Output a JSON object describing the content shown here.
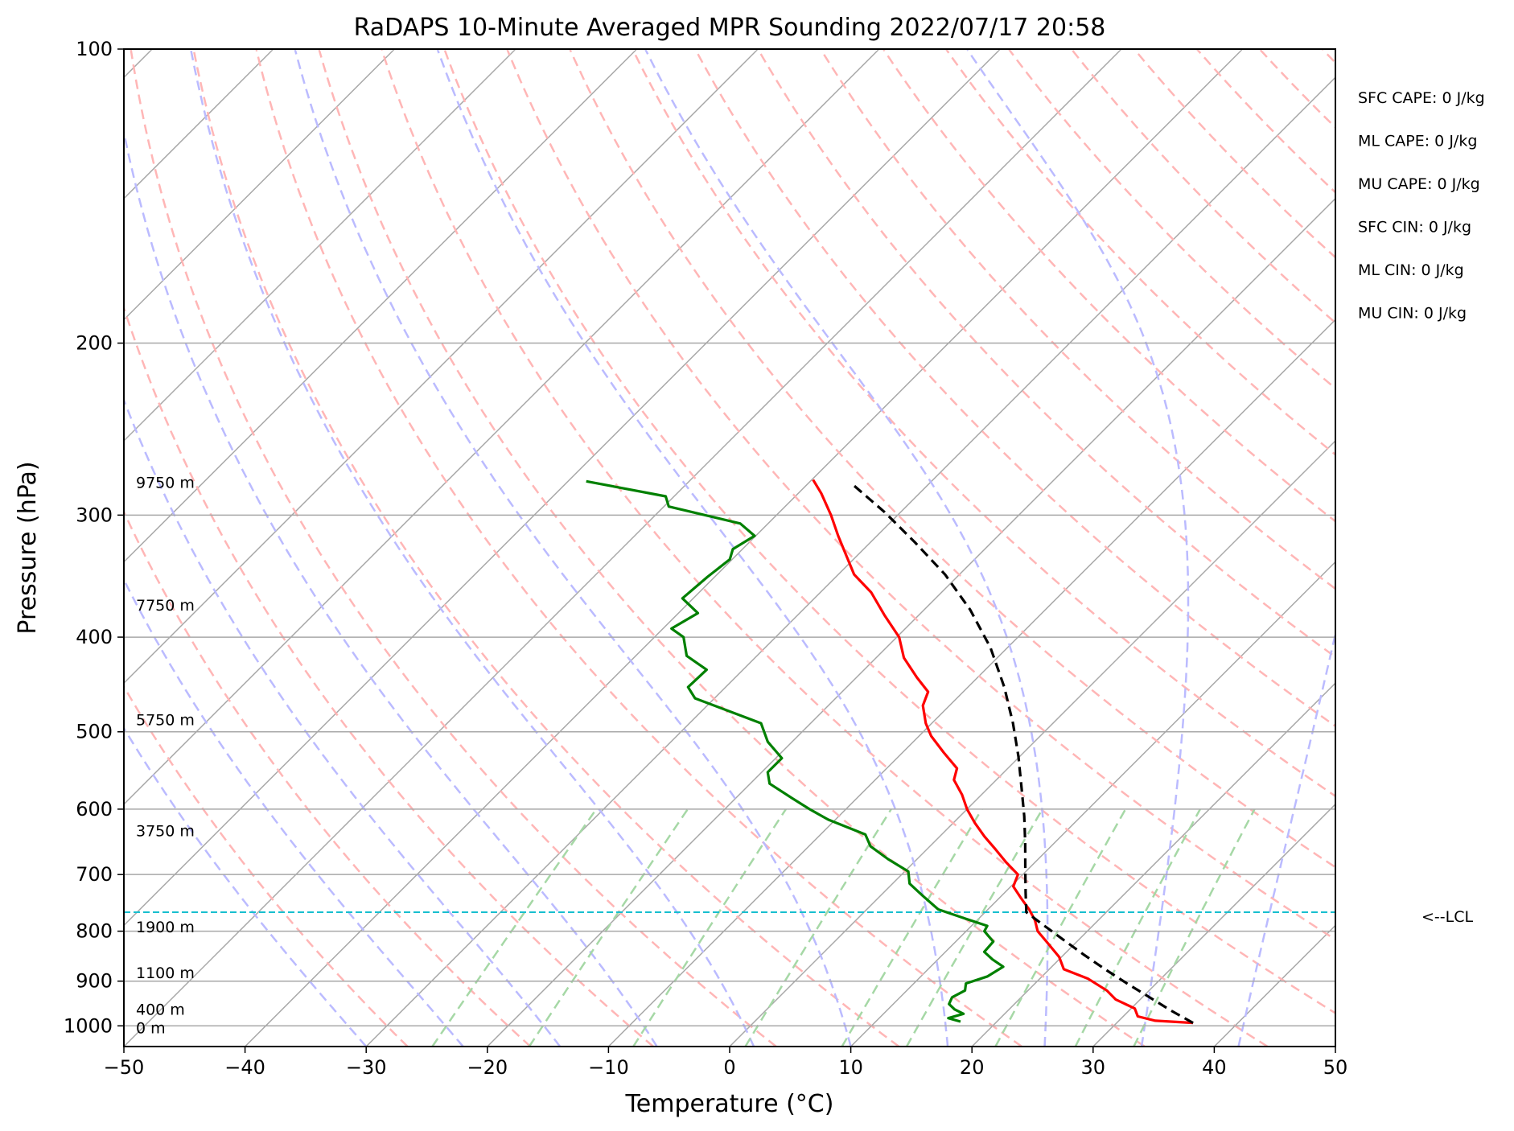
{
  "chart_data": {
    "type": "line",
    "subtype": "skew-T log-P sounding",
    "title": "RaDAPS 10-Minute Averaged MPR Sounding 2022/07/17 20:58",
    "xlabel": "Temperature (°C)",
    "ylabel": "Pressure (hPa)",
    "xlim": [
      -50,
      50
    ],
    "ylim": [
      1050,
      100
    ],
    "y_scale": "log",
    "x_ticks": [
      "−50",
      "−40",
      "−30",
      "−20",
      "−10",
      "0",
      "10",
      "20",
      "30",
      "40",
      "50"
    ],
    "x_tick_values": [
      -50,
      -40,
      -30,
      -20,
      -10,
      0,
      10,
      20,
      30,
      40,
      50
    ],
    "y_ticks": [
      "100",
      "200",
      "300",
      "400",
      "500",
      "600",
      "700",
      "800",
      "900",
      "1000"
    ],
    "y_tick_values": [
      100,
      200,
      300,
      400,
      500,
      600,
      700,
      800,
      900,
      1000
    ],
    "grid": true,
    "series": [
      {
        "color": "#ff0000",
        "points": [
          {
            "p": 993,
            "t": 36.3
          },
          {
            "p": 988,
            "t": 33.0
          },
          {
            "p": 978,
            "t": 31.2
          },
          {
            "p": 960,
            "t": 30.3
          },
          {
            "p": 940,
            "t": 28.0
          },
          {
            "p": 920,
            "t": 26.5
          },
          {
            "p": 895,
            "t": 24.0
          },
          {
            "p": 875,
            "t": 21.2
          },
          {
            "p": 850,
            "t": 19.8
          },
          {
            "p": 820,
            "t": 17.5
          },
          {
            "p": 800,
            "t": 15.9
          },
          {
            "p": 780,
            "t": 14.8
          },
          {
            "p": 760,
            "t": 13.4
          },
          {
            "p": 740,
            "t": 11.8
          },
          {
            "p": 720,
            "t": 10.2
          },
          {
            "p": 700,
            "t": 9.6
          },
          {
            "p": 680,
            "t": 7.6
          },
          {
            "p": 660,
            "t": 5.7
          },
          {
            "p": 640,
            "t": 3.7
          },
          {
            "p": 620,
            "t": 1.8
          },
          {
            "p": 600,
            "t": 0.0
          },
          {
            "p": 580,
            "t": -1.6
          },
          {
            "p": 560,
            "t": -3.5
          },
          {
            "p": 545,
            "t": -4.2
          },
          {
            "p": 525,
            "t": -6.6
          },
          {
            "p": 505,
            "t": -9.0
          },
          {
            "p": 490,
            "t": -10.5
          },
          {
            "p": 470,
            "t": -12.2
          },
          {
            "p": 455,
            "t": -12.9
          },
          {
            "p": 440,
            "t": -15.0
          },
          {
            "p": 420,
            "t": -17.7
          },
          {
            "p": 400,
            "t": -19.8
          },
          {
            "p": 380,
            "t": -22.8
          },
          {
            "p": 360,
            "t": -25.8
          },
          {
            "p": 345,
            "t": -28.7
          },
          {
            "p": 330,
            "t": -30.9
          },
          {
            "p": 315,
            "t": -33.2
          },
          {
            "p": 300,
            "t": -35.5
          },
          {
            "p": 285,
            "t": -38.1
          },
          {
            "p": 276,
            "t": -39.9
          }
        ]
      },
      {
        "color": "#008000",
        "points": [
          {
            "p": 990,
            "t": 17.0
          },
          {
            "p": 982,
            "t": 15.7
          },
          {
            "p": 972,
            "t": 16.6
          },
          {
            "p": 962,
            "t": 15.5
          },
          {
            "p": 950,
            "t": 14.6
          },
          {
            "p": 935,
            "t": 14.3
          },
          {
            "p": 920,
            "t": 14.8
          },
          {
            "p": 905,
            "t": 14.3
          },
          {
            "p": 890,
            "t": 15.5
          },
          {
            "p": 870,
            "t": 16.0
          },
          {
            "p": 855,
            "t": 14.5
          },
          {
            "p": 840,
            "t": 13.2
          },
          {
            "p": 820,
            "t": 13.1
          },
          {
            "p": 800,
            "t": 11.5
          },
          {
            "p": 790,
            "t": 11.3
          },
          {
            "p": 775,
            "t": 8.6
          },
          {
            "p": 760,
            "t": 5.9
          },
          {
            "p": 735,
            "t": 3.4
          },
          {
            "p": 715,
            "t": 1.4
          },
          {
            "p": 695,
            "t": 0.3
          },
          {
            "p": 675,
            "t": -2.4
          },
          {
            "p": 655,
            "t": -4.9
          },
          {
            "p": 637,
            "t": -6.3
          },
          {
            "p": 615,
            "t": -10.6
          },
          {
            "p": 600,
            "t": -13.0
          },
          {
            "p": 585,
            "t": -15.3
          },
          {
            "p": 565,
            "t": -18.4
          },
          {
            "p": 550,
            "t": -19.5
          },
          {
            "p": 532,
            "t": -19.5
          },
          {
            "p": 512,
            "t": -22.0
          },
          {
            "p": 490,
            "t": -24.1
          },
          {
            "p": 462,
            "t": -31.6
          },
          {
            "p": 450,
            "t": -33.1
          },
          {
            "p": 432,
            "t": -33.0
          },
          {
            "p": 418,
            "t": -35.8
          },
          {
            "p": 400,
            "t": -37.6
          },
          {
            "p": 392,
            "t": -39.3
          },
          {
            "p": 378,
            "t": -38.4
          },
          {
            "p": 365,
            "t": -40.9
          },
          {
            "p": 347,
            "t": -40.6
          },
          {
            "p": 333,
            "t": -40.2
          },
          {
            "p": 325,
            "t": -40.8
          },
          {
            "p": 315,
            "t": -40.1
          },
          {
            "p": 306,
            "t": -42.3
          },
          {
            "p": 294,
            "t": -49.6
          },
          {
            "p": 287,
            "t": -50.7
          },
          {
            "p": 277,
            "t": -58.5
          }
        ]
      },
      {
        "color": "#000000",
        "points": [
          {
            "p": 993,
            "t": 36.3
          },
          {
            "p": 965,
            "t": 33.5
          },
          {
            "p": 935,
            "t": 30.6
          },
          {
            "p": 905,
            "t": 27.6
          },
          {
            "p": 875,
            "t": 24.6
          },
          {
            "p": 845,
            "t": 21.6
          },
          {
            "p": 815,
            "t": 18.6
          },
          {
            "p": 785,
            "t": 15.5
          },
          {
            "p": 765,
            "t": 13.4
          },
          {
            "p": 730,
            "t": 11.7
          },
          {
            "p": 690,
            "t": 9.7
          },
          {
            "p": 650,
            "t": 7.6
          },
          {
            "p": 610,
            "t": 5.3
          },
          {
            "p": 570,
            "t": 2.7
          },
          {
            "p": 530,
            "t": -0.1
          },
          {
            "p": 490,
            "t": -3.3
          },
          {
            "p": 450,
            "t": -7.0
          },
          {
            "p": 410,
            "t": -11.4
          },
          {
            "p": 375,
            "t": -16.2
          },
          {
            "p": 345,
            "t": -21.2
          },
          {
            "p": 320,
            "t": -26.3
          },
          {
            "p": 298,
            "t": -31.3
          },
          {
            "p": 280,
            "t": -36.0
          }
        ]
      }
    ],
    "lcl_p": 765,
    "lcl_label": "<--LCL",
    "height_labels": [
      {
        "p": 277,
        "text": "9750 m"
      },
      {
        "p": 370,
        "text": "7750 m"
      },
      {
        "p": 485,
        "text": "5750 m"
      },
      {
        "p": 630,
        "text": "3750 m"
      },
      {
        "p": 790,
        "text": "1900 m"
      },
      {
        "p": 880,
        "text": "1100 m"
      },
      {
        "p": 960,
        "text": "400 m"
      },
      {
        "p": 1002,
        "text": "0 m"
      }
    ],
    "indices": [
      "SFC CAPE: 0 J/kg",
      "ML CAPE: 0 J/kg",
      "MU CAPE: 0 J/kg",
      "SFC CIN: 0 J/kg",
      "ML CIN: 0 J/kg",
      "MU CIN: 0 J/kg"
    ],
    "colors": {
      "isotherm": "#a8a8a8",
      "dry_adiabat": "#ffb6b6",
      "moist_adiabat": "#bbbbff",
      "mixing_ratio": "#a6d8a6",
      "lcl_line": "#17bfcf"
    }
  }
}
